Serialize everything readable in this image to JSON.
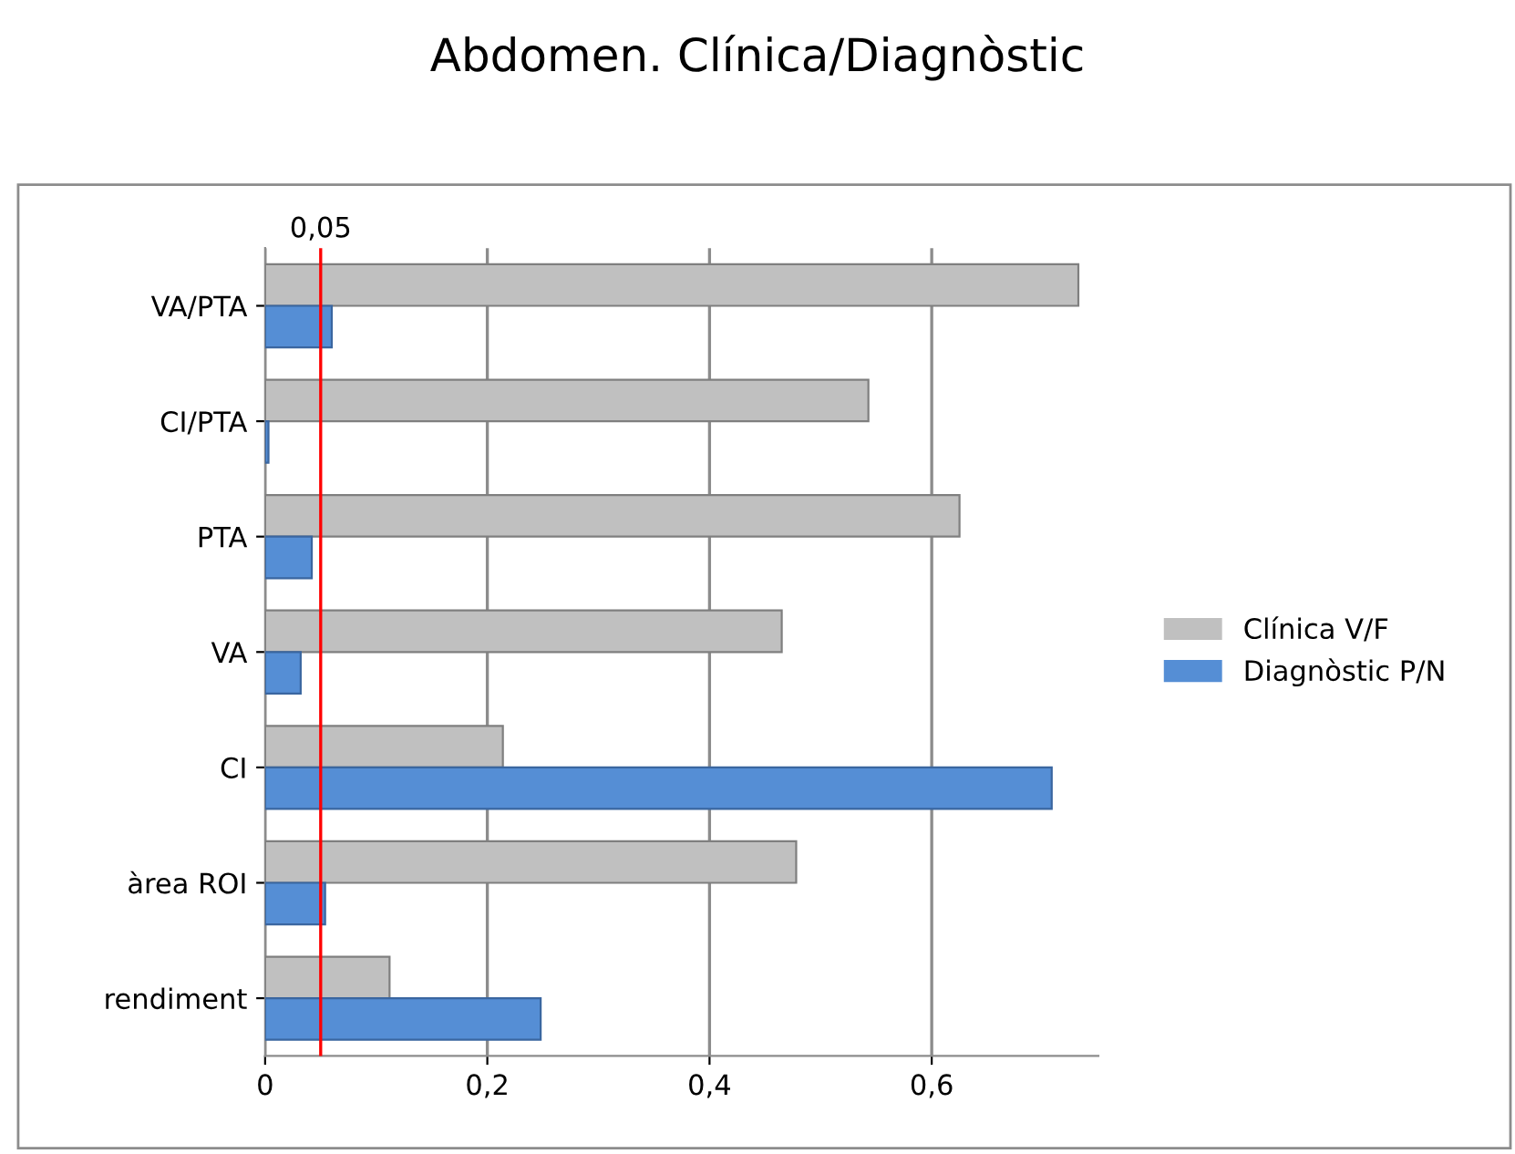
{
  "chart_data": {
    "type": "bar",
    "orientation": "horizontal",
    "title": "Abdomen. Clínica/Diagnòstic",
    "categories": [
      "VA/PTA",
      "CI/PTA",
      "PTA",
      "VA",
      "CI",
      "àrea ROI",
      "rendiment"
    ],
    "series": [
      {
        "name": "Clínica V/F",
        "color": "#c0c0c0",
        "values": [
          0.732,
          0.543,
          0.625,
          0.465,
          0.214,
          0.478,
          0.112
        ]
      },
      {
        "name": "Diagnòstic P/N",
        "color": "#558ed5",
        "values": [
          0.06,
          0.003,
          0.042,
          0.032,
          0.708,
          0.054,
          0.248
        ]
      }
    ],
    "xlim": [
      0,
      0.75
    ],
    "xticks": [
      0,
      {
        "value": 0.2,
        "label": "0,2"
      },
      {
        "value": 0.4,
        "label": "0,4"
      },
      {
        "value": 0.6,
        "label": "0,6"
      }
    ],
    "ref_lines": [
      {
        "axis": "x",
        "value": 0.05,
        "label": "0,05",
        "color": "#ff0000"
      }
    ],
    "grid": "x",
    "legend": "right"
  }
}
